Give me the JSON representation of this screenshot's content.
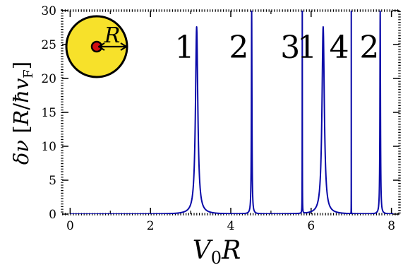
{
  "chart_data": {
    "type": "line",
    "xlabel": "V_0R",
    "ylabel": "δν [R/ħv_F]",
    "xlim": [
      -0.2,
      8.2
    ],
    "ylim": [
      0,
      30
    ],
    "xticks": [
      0,
      2,
      4,
      6,
      8
    ],
    "yticks": [
      0,
      5,
      10,
      15,
      20,
      25,
      30
    ],
    "grid": false,
    "series_color": "#0a0aa8",
    "peaks": [
      {
        "x": 3.15,
        "height": 27.6,
        "width": 0.035
      },
      {
        "x": 4.52,
        "height": 30,
        "width": 0.008
      },
      {
        "x": 5.78,
        "height": 30,
        "width": 0.002
      },
      {
        "x": 6.3,
        "height": 27.6,
        "width": 0.035
      },
      {
        "x": 7.0,
        "height": 30,
        "width": 0.0005
      },
      {
        "x": 7.72,
        "height": 30,
        "width": 0.008
      }
    ],
    "annotations": [
      {
        "text": "1",
        "x": 2.85
      },
      {
        "text": "2",
        "x": 4.2
      },
      {
        "text": "3",
        "x": 5.48
      },
      {
        "text": "1",
        "x": 5.9
      },
      {
        "text": "4",
        "x": 6.7
      },
      {
        "text": "2",
        "x": 7.45
      }
    ],
    "inset": {
      "label": "R",
      "disk_color": "#f7e12a",
      "dot_color": "#d01010"
    }
  }
}
